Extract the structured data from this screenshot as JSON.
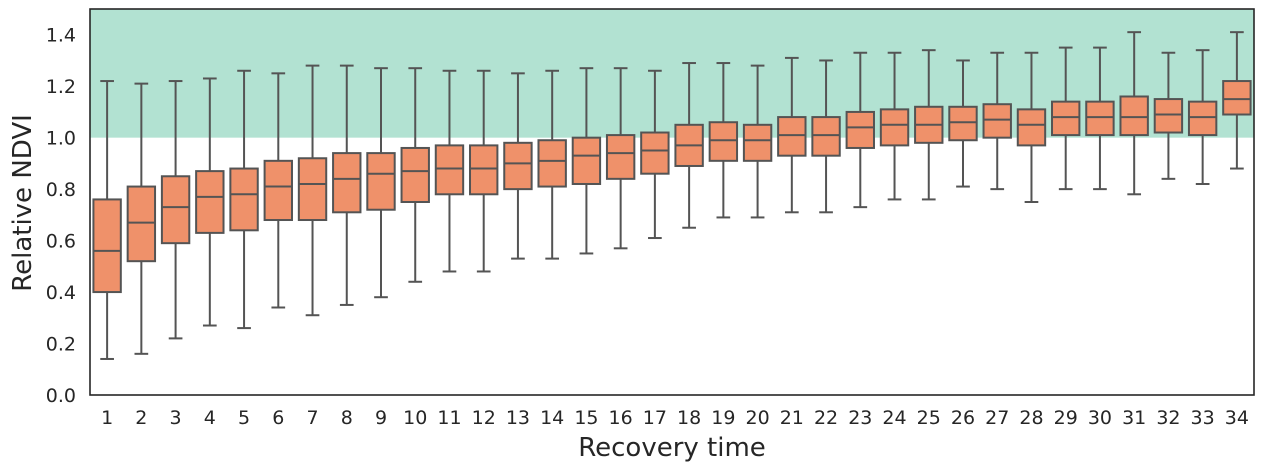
{
  "chart_data": {
    "type": "box",
    "xlabel": "Recovery time",
    "ylabel": "Relative NDVI",
    "ylim": [
      0.0,
      1.5
    ],
    "yticks": [
      "0.0",
      "0.2",
      "0.4",
      "0.6",
      "0.8",
      "1.0",
      "1.2",
      "1.4"
    ],
    "categories": [
      "1",
      "2",
      "3",
      "4",
      "5",
      "6",
      "7",
      "8",
      "9",
      "10",
      "11",
      "12",
      "13",
      "14",
      "15",
      "16",
      "17",
      "18",
      "19",
      "20",
      "21",
      "22",
      "23",
      "24",
      "25",
      "26",
      "27",
      "28",
      "29",
      "30",
      "31",
      "32",
      "33",
      "34"
    ],
    "shaded_band": {
      "from": 1.0,
      "to": 1.5,
      "color": "#b2e2d2"
    },
    "box_color": "#ef916a",
    "line_color": "#545454",
    "grid": false,
    "boxes": [
      {
        "whisker_low": 0.14,
        "q1": 0.4,
        "median": 0.56,
        "q3": 0.76,
        "whisker_high": 1.22
      },
      {
        "whisker_low": 0.16,
        "q1": 0.52,
        "median": 0.67,
        "q3": 0.81,
        "whisker_high": 1.21
      },
      {
        "whisker_low": 0.22,
        "q1": 0.59,
        "median": 0.73,
        "q3": 0.85,
        "whisker_high": 1.22
      },
      {
        "whisker_low": 0.27,
        "q1": 0.63,
        "median": 0.77,
        "q3": 0.87,
        "whisker_high": 1.23
      },
      {
        "whisker_low": 0.26,
        "q1": 0.64,
        "median": 0.78,
        "q3": 0.88,
        "whisker_high": 1.26
      },
      {
        "whisker_low": 0.34,
        "q1": 0.68,
        "median": 0.81,
        "q3": 0.91,
        "whisker_high": 1.25
      },
      {
        "whisker_low": 0.31,
        "q1": 0.68,
        "median": 0.82,
        "q3": 0.92,
        "whisker_high": 1.28
      },
      {
        "whisker_low": 0.35,
        "q1": 0.71,
        "median": 0.84,
        "q3": 0.94,
        "whisker_high": 1.28
      },
      {
        "whisker_low": 0.38,
        "q1": 0.72,
        "median": 0.86,
        "q3": 0.94,
        "whisker_high": 1.27
      },
      {
        "whisker_low": 0.44,
        "q1": 0.75,
        "median": 0.87,
        "q3": 0.96,
        "whisker_high": 1.27
      },
      {
        "whisker_low": 0.48,
        "q1": 0.78,
        "median": 0.88,
        "q3": 0.97,
        "whisker_high": 1.26
      },
      {
        "whisker_low": 0.48,
        "q1": 0.78,
        "median": 0.88,
        "q3": 0.97,
        "whisker_high": 1.26
      },
      {
        "whisker_low": 0.53,
        "q1": 0.8,
        "median": 0.9,
        "q3": 0.98,
        "whisker_high": 1.25
      },
      {
        "whisker_low": 0.53,
        "q1": 0.81,
        "median": 0.91,
        "q3": 0.99,
        "whisker_high": 1.26
      },
      {
        "whisker_low": 0.55,
        "q1": 0.82,
        "median": 0.93,
        "q3": 1.0,
        "whisker_high": 1.27
      },
      {
        "whisker_low": 0.57,
        "q1": 0.84,
        "median": 0.94,
        "q3": 1.01,
        "whisker_high": 1.27
      },
      {
        "whisker_low": 0.61,
        "q1": 0.86,
        "median": 0.95,
        "q3": 1.02,
        "whisker_high": 1.26
      },
      {
        "whisker_low": 0.65,
        "q1": 0.89,
        "median": 0.97,
        "q3": 1.05,
        "whisker_high": 1.29
      },
      {
        "whisker_low": 0.69,
        "q1": 0.91,
        "median": 0.99,
        "q3": 1.06,
        "whisker_high": 1.29
      },
      {
        "whisker_low": 0.69,
        "q1": 0.91,
        "median": 0.99,
        "q3": 1.05,
        "whisker_high": 1.28
      },
      {
        "whisker_low": 0.71,
        "q1": 0.93,
        "median": 1.01,
        "q3": 1.08,
        "whisker_high": 1.31
      },
      {
        "whisker_low": 0.71,
        "q1": 0.93,
        "median": 1.01,
        "q3": 1.08,
        "whisker_high": 1.3
      },
      {
        "whisker_low": 0.73,
        "q1": 0.96,
        "median": 1.04,
        "q3": 1.1,
        "whisker_high": 1.33
      },
      {
        "whisker_low": 0.76,
        "q1": 0.97,
        "median": 1.05,
        "q3": 1.11,
        "whisker_high": 1.33
      },
      {
        "whisker_low": 0.76,
        "q1": 0.98,
        "median": 1.05,
        "q3": 1.12,
        "whisker_high": 1.34
      },
      {
        "whisker_low": 0.81,
        "q1": 0.99,
        "median": 1.06,
        "q3": 1.12,
        "whisker_high": 1.3
      },
      {
        "whisker_low": 0.8,
        "q1": 1.0,
        "median": 1.07,
        "q3": 1.13,
        "whisker_high": 1.33
      },
      {
        "whisker_low": 0.75,
        "q1": 0.97,
        "median": 1.05,
        "q3": 1.11,
        "whisker_high": 1.33
      },
      {
        "whisker_low": 0.8,
        "q1": 1.01,
        "median": 1.08,
        "q3": 1.14,
        "whisker_high": 1.35
      },
      {
        "whisker_low": 0.8,
        "q1": 1.01,
        "median": 1.08,
        "q3": 1.14,
        "whisker_high": 1.35
      },
      {
        "whisker_low": 0.78,
        "q1": 1.01,
        "median": 1.08,
        "q3": 1.16,
        "whisker_high": 1.41
      },
      {
        "whisker_low": 0.84,
        "q1": 1.02,
        "median": 1.09,
        "q3": 1.15,
        "whisker_high": 1.33
      },
      {
        "whisker_low": 0.82,
        "q1": 1.01,
        "median": 1.08,
        "q3": 1.14,
        "whisker_high": 1.34
      },
      {
        "whisker_low": 0.88,
        "q1": 1.09,
        "median": 1.15,
        "q3": 1.22,
        "whisker_high": 1.41
      }
    ]
  }
}
